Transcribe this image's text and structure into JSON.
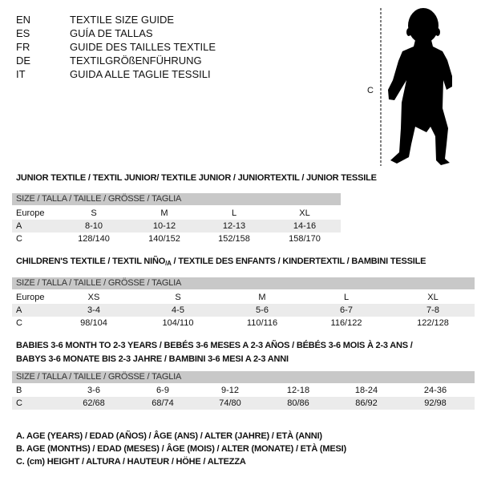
{
  "languages": [
    {
      "code": "EN",
      "text": "TEXTILE SIZE GUIDE"
    },
    {
      "code": "ES",
      "text": "GUÍA DE TALLAS"
    },
    {
      "code": "FR",
      "text": "GUIDE DES TAILLES TEXTILE"
    },
    {
      "code": "DE",
      "text": "TEXTILGRÖßENFÜHRUNG"
    },
    {
      "code": "IT",
      "text": "GUIDA ALLE TAGLIE TESSILI"
    }
  ],
  "figure": {
    "measure_label": "C"
  },
  "junior": {
    "title": "JUNIOR TEXTILE / TEXTIL JUNIOR/ TEXTILE JUNIOR / JUNIORTEXTIL / JUNIOR TESSILE",
    "header": "SIZE / TALLA / TAILLE / GRÖSSE / TAGLIA",
    "rows": [
      {
        "label": "Europe",
        "cells": [
          "S",
          "M",
          "L",
          "XL"
        ]
      },
      {
        "label": "A",
        "cells": [
          "8-10",
          "10-12",
          "12-13",
          "14-16"
        ]
      },
      {
        "label": "C",
        "cells": [
          "128/140",
          "140/152",
          "152/158",
          "158/170"
        ]
      }
    ]
  },
  "children": {
    "title_pre": "CHILDREN'S TEXTILE / TEXTIL NIÑO",
    "title_sub": "/A",
    "title_post": " / TEXTILE DES ENFANTS / KINDERTEXTIL / BAMBINI TESSILE",
    "header": "SIZE / TALLA / TAILLE / GRÖSSE / TAGLIA",
    "rows": [
      {
        "label": "Europe",
        "cells": [
          "XS",
          "S",
          "M",
          "L",
          "XL"
        ]
      },
      {
        "label": "A",
        "cells": [
          "3-4",
          "4-5",
          "5-6",
          "6-7",
          "7-8"
        ]
      },
      {
        "label": "C",
        "cells": [
          "98/104",
          "104/110",
          "110/116",
          "116/122",
          "122/128"
        ]
      }
    ]
  },
  "babies": {
    "title_line1": "BABIES 3-6 MONTH TO 2-3 YEARS / BEBÉS 3-6 MESES A 2-3 AÑOS / BÉBÉS 3-6 MOIS À 2-3 ANS /",
    "title_line2": "BABYS 3-6 MONATE BIS 2-3 JAHRE / BAMBINI 3-6 MESI A 2-3 ANNI",
    "header": "SIZE / TALLA / TAILLE / GRÖSSE / TAGLIA",
    "rows": [
      {
        "label": "B",
        "cells": [
          "3-6",
          "6-9",
          "9-12",
          "12-18",
          "18-24",
          "24-36"
        ]
      },
      {
        "label": "C",
        "cells": [
          "62/68",
          "68/74",
          "74/80",
          "80/86",
          "86/92",
          "92/98"
        ]
      }
    ]
  },
  "legend": [
    "A. AGE (YEARS) / EDAD (AÑOS) / ÂGE (ANS) / ALTER (JAHRE) / ETÀ (ANNI)",
    "B. AGE (MONTHS) / EDAD (MESES) / ÂGE (MOIS) / ALTER (MONATE) / ETÀ (MESI)",
    "C. (cm) HEIGHT / ALTURA / HAUTEUR / HÖHE / ALTEZZA"
  ],
  "colors": {
    "header_bg": "#c8c8c8",
    "shaded_row": "#ebebeb"
  }
}
